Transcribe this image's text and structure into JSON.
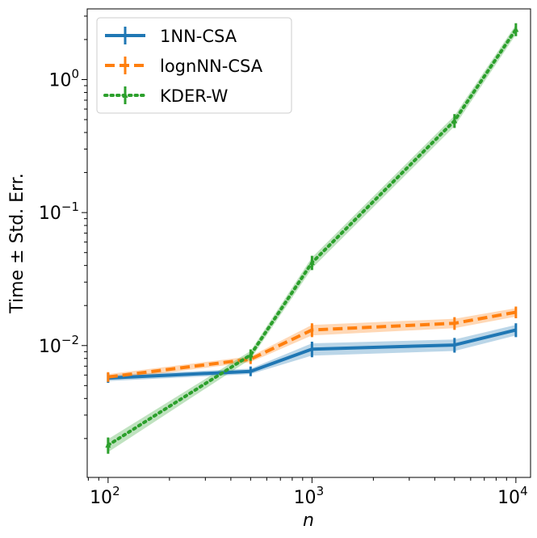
{
  "chart_data": {
    "type": "line",
    "title": "",
    "xlabel": "n",
    "ylabel": "Time ± Std. Err.",
    "xscale": "log",
    "yscale": "log",
    "xlim": [
      79,
      11800
    ],
    "ylim": [
      0.00102,
      3.4
    ],
    "x": [
      100,
      500,
      1000,
      5000,
      10000
    ],
    "x_ticks": [
      {
        "value": 100,
        "base": "10",
        "exp": "2"
      },
      {
        "value": 1000,
        "base": "10",
        "exp": "3"
      },
      {
        "value": 10000,
        "base": "10",
        "exp": "4"
      }
    ],
    "y_ticks": [
      {
        "value": 0.01,
        "base": "10",
        "exp": "−2"
      },
      {
        "value": 0.1,
        "base": "10",
        "exp": "−1"
      },
      {
        "value": 1,
        "base": "10",
        "exp": "0"
      }
    ],
    "legend_position": "top-left",
    "series": [
      {
        "name": "1NN-CSA",
        "color": "#1f77b4",
        "linestyle": "solid",
        "marker": "none",
        "values": [
          0.0057,
          0.0064,
          0.0094,
          0.0101,
          0.0131
        ],
        "errors": [
          0.0003,
          0.0003,
          0.001,
          0.001,
          0.0012
        ]
      },
      {
        "name": "lognNN-CSA",
        "color": "#ff7f0e",
        "linestyle": "dashed",
        "marker": "none",
        "values": [
          0.0058,
          0.0079,
          0.0131,
          0.0147,
          0.0178
        ],
        "errors": [
          0.0003,
          0.0004,
          0.0012,
          0.0012,
          0.0013
        ]
      },
      {
        "name": "KDER-W",
        "color": "#2ca02c",
        "linestyle": "dotted",
        "marker": "triangle",
        "values": [
          0.00178,
          0.0085,
          0.042,
          0.49,
          2.38
        ],
        "errors": [
          0.0002,
          0.0006,
          0.004,
          0.045,
          0.2
        ]
      }
    ]
  }
}
